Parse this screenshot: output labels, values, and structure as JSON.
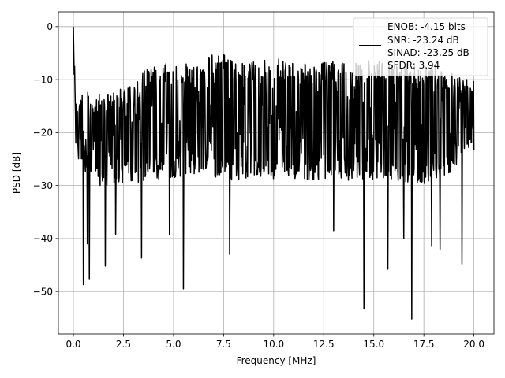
{
  "chart_data": {
    "type": "line",
    "xlabel": "Frequency [MHz]",
    "ylabel": "PSD [dB]",
    "xlim": [
      -0.75,
      21.0
    ],
    "ylim": [
      -58.0,
      2.8
    ],
    "grid": true,
    "legend_placement": "upper right",
    "xticks": [
      0.0,
      2.5,
      5.0,
      7.5,
      10.0,
      12.5,
      15.0,
      17.5,
      20.0
    ],
    "xtick_labels": [
      "0.0",
      "2.5",
      "5.0",
      "7.5",
      "10.0",
      "12.5",
      "15.0",
      "17.5",
      "20.0"
    ],
    "yticks": [
      0,
      -10,
      -20,
      -30,
      -40,
      -50
    ],
    "ytick_labels": [
      "0",
      "−10",
      "−20",
      "−30",
      "−40",
      "−50"
    ],
    "series": [
      {
        "name": "ENOB: -4.15 bits\nSNR: -23.24 dB\nSINAD: -23.25 dB\nSFDR: 3.94",
        "color": "#000000",
        "x_start": 0.0,
        "x_end": 20.0,
        "n_points": 1000,
        "peak_points": [
          [
            0.0,
            0.0
          ],
          [
            0.02,
            -5.0
          ],
          [
            0.04,
            -9.0
          ],
          [
            0.06,
            -7.5
          ],
          [
            0.08,
            -12.0
          ],
          [
            0.1,
            -16.0
          ]
        ],
        "envelope_upper": [
          [
            0.1,
            -15
          ],
          [
            0.5,
            -11
          ],
          [
            1.0,
            -13
          ],
          [
            2.0,
            -12
          ],
          [
            3.0,
            -11
          ],
          [
            3.5,
            -8
          ],
          [
            4.5,
            -7
          ],
          [
            6.0,
            -7
          ],
          [
            7.6,
            -4
          ],
          [
            8.0,
            -7
          ],
          [
            10.0,
            -6
          ],
          [
            12.0,
            -7
          ],
          [
            14.0,
            -6
          ],
          [
            16.0,
            -7
          ],
          [
            18.0,
            -7
          ],
          [
            20.0,
            -10
          ]
        ],
        "envelope_lower": [
          [
            0.1,
            -25
          ],
          [
            1.0,
            -30
          ],
          [
            2.0,
            -30
          ],
          [
            4.0,
            -29
          ],
          [
            6.0,
            -28
          ],
          [
            8.0,
            -29
          ],
          [
            10.0,
            -29
          ],
          [
            12.0,
            -29
          ],
          [
            14.0,
            -29
          ],
          [
            16.0,
            -29
          ],
          [
            18.0,
            -30
          ],
          [
            20.0,
            -24
          ]
        ],
        "notable_dips": [
          [
            0.5,
            -48.7
          ],
          [
            0.8,
            -47.6
          ],
          [
            0.7,
            -41.0
          ],
          [
            1.6,
            -45.2
          ],
          [
            2.1,
            -39.2
          ],
          [
            3.4,
            -43.7
          ],
          [
            4.8,
            -39.2
          ],
          [
            5.5,
            -49.5
          ],
          [
            7.8,
            -43.0
          ],
          [
            13.0,
            -38.5
          ],
          [
            14.5,
            -53.3
          ],
          [
            15.7,
            -45.8
          ],
          [
            16.5,
            -40.0
          ],
          [
            16.9,
            -55.2
          ],
          [
            17.9,
            -41.5
          ],
          [
            18.3,
            -42.0
          ],
          [
            19.4,
            -44.8
          ]
        ]
      }
    ]
  },
  "legend": {
    "entries": [
      "ENOB: -4.15 bits",
      "SNR: -23.24 dB",
      "SINAD: -23.25 dB",
      "SFDR: 3.94"
    ]
  }
}
